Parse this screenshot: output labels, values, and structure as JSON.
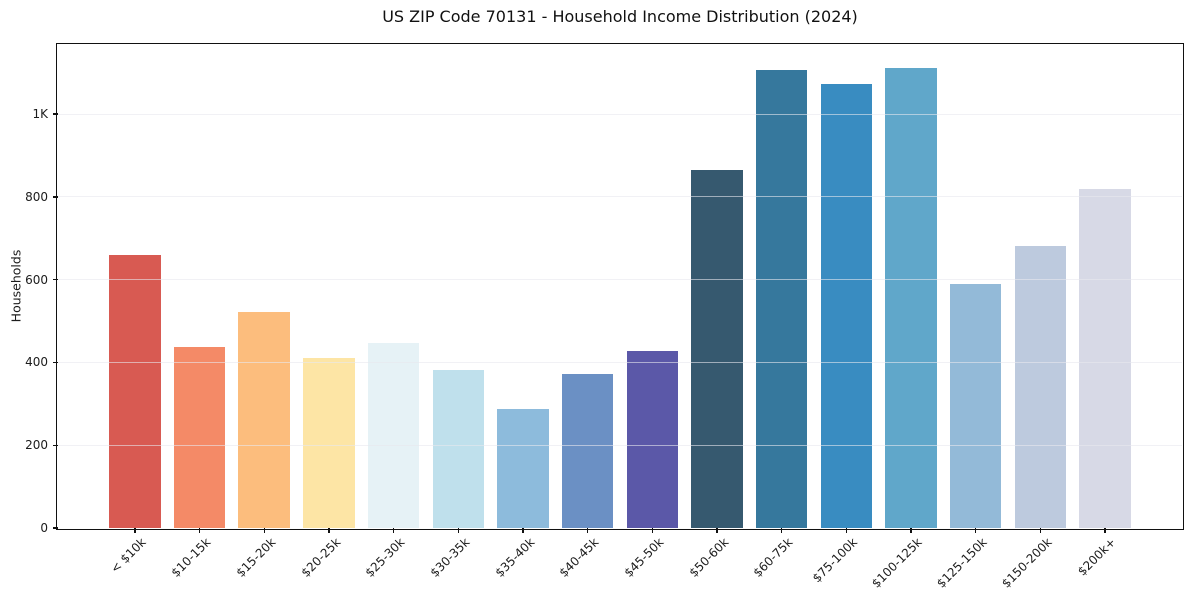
{
  "chart_data": {
    "type": "bar",
    "title": "US ZIP Code 70131 - Household Income Distribution (2024)",
    "xlabel": "",
    "ylabel": "Households",
    "categories": [
      "< $10k",
      "$10-15k",
      "$15-20k",
      "$20-25k",
      "$25-30k",
      "$30-35k",
      "$35-40k",
      "$40-45k",
      "$45-50k",
      "$50-60k",
      "$60-75k",
      "$75-100k",
      "$100-125k",
      "$125-150k",
      "$150-200k",
      "$200k+"
    ],
    "values": [
      659,
      437,
      521,
      412,
      446,
      381,
      287,
      372,
      427,
      864,
      1107,
      1073,
      1111,
      589,
      681,
      818
    ],
    "bar_colors": [
      "#d85a52",
      "#f48a67",
      "#fcbd7d",
      "#fde5a5",
      "#e6f2f6",
      "#bfe0ec",
      "#8dbbdc",
      "#6b90c4",
      "#5b58a8",
      "#36596f",
      "#36789d",
      "#398cc1",
      "#60a7ca",
      "#93bad8",
      "#bdcade",
      "#d7d9e6"
    ],
    "ylim": [
      0,
      1167
    ],
    "yticks": [
      {
        "v": 0,
        "label": "0"
      },
      {
        "v": 200,
        "label": "200"
      },
      {
        "v": 400,
        "label": "400"
      },
      {
        "v": 600,
        "label": "600"
      },
      {
        "v": 800,
        "label": "800"
      },
      {
        "v": 1000,
        "label": "1K"
      }
    ],
    "gridlines": [
      200,
      400,
      600,
      800,
      1000
    ],
    "grid": "horizontal",
    "legend_position": "none",
    "x_tick_rotation_deg": 45
  },
  "colors": {
    "background": "#ffffff",
    "spine": "#111111",
    "grid": "#e7e7ef",
    "text": "#1c1c1c"
  }
}
